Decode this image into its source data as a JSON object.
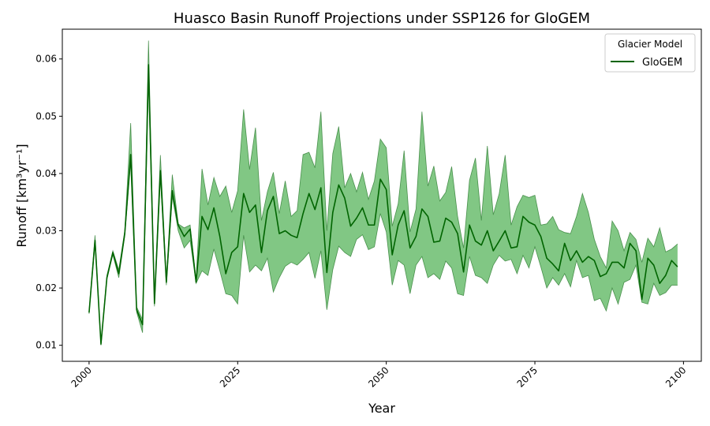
{
  "chart_data": {
    "type": "line",
    "title": "Huasco Basin Runoff Projections under SSP126 for GloGEM",
    "xlabel": "Year",
    "ylabel": "Runoff [km³yr⁻¹]",
    "xlim": [
      1995.5,
      2103
    ],
    "ylim": [
      0.0072,
      0.0652
    ],
    "x_ticks": [
      2000,
      2025,
      2050,
      2075,
      2100
    ],
    "y_ticks": [
      0.01,
      0.02,
      0.03,
      0.04,
      0.05,
      0.06
    ],
    "grid": false,
    "legend": {
      "title": "Glacier Model",
      "position": "top-right"
    },
    "colors": {
      "line": "#006400",
      "band": "#4caf50"
    },
    "series": [
      {
        "name": "GloGEM",
        "x": [
          2000,
          2001,
          2002,
          2003,
          2004,
          2005,
          2006,
          2007,
          2008,
          2009,
          2010,
          2011,
          2012,
          2013,
          2014,
          2015,
          2016,
          2017,
          2018,
          2019,
          2020,
          2021,
          2022,
          2023,
          2024,
          2025,
          2026,
          2027,
          2028,
          2029,
          2030,
          2031,
          2032,
          2033,
          2034,
          2035,
          2036,
          2037,
          2038,
          2039,
          2040,
          2041,
          2042,
          2043,
          2044,
          2045,
          2046,
          2047,
          2048,
          2049,
          2050,
          2051,
          2052,
          2053,
          2054,
          2055,
          2056,
          2057,
          2058,
          2059,
          2060,
          2061,
          2062,
          2063,
          2064,
          2065,
          2066,
          2067,
          2068,
          2069,
          2070,
          2071,
          2072,
          2073,
          2074,
          2075,
          2076,
          2077,
          2078,
          2079,
          2080,
          2081,
          2082,
          2083,
          2084,
          2085,
          2086,
          2087,
          2088,
          2089,
          2090,
          2091,
          2092,
          2093,
          2094,
          2095,
          2096,
          2097,
          2098,
          2099
        ],
        "values": [
          0.0157,
          0.0283,
          0.0102,
          0.0218,
          0.0262,
          0.0225,
          0.0295,
          0.0433,
          0.0162,
          0.0136,
          0.059,
          0.0173,
          0.0405,
          0.021,
          0.037,
          0.031,
          0.029,
          0.0303,
          0.021,
          0.0325,
          0.0302,
          0.034,
          0.029,
          0.0225,
          0.0262,
          0.0272,
          0.0365,
          0.0332,
          0.0345,
          0.0262,
          0.0335,
          0.036,
          0.0295,
          0.03,
          0.0292,
          0.0288,
          0.033,
          0.0365,
          0.0337,
          0.0375,
          0.0227,
          0.0332,
          0.038,
          0.0357,
          0.0308,
          0.0322,
          0.034,
          0.031,
          0.031,
          0.039,
          0.0372,
          0.0258,
          0.031,
          0.0335,
          0.027,
          0.029,
          0.0338,
          0.0325,
          0.028,
          0.0282,
          0.0322,
          0.0315,
          0.0295,
          0.0228,
          0.031,
          0.0282,
          0.0275,
          0.03,
          0.0265,
          0.0282,
          0.03,
          0.027,
          0.0272,
          0.0325,
          0.0315,
          0.031,
          0.029,
          0.0252,
          0.0242,
          0.023,
          0.0278,
          0.0248,
          0.0265,
          0.0245,
          0.0255,
          0.0248,
          0.022,
          0.0225,
          0.0245,
          0.0245,
          0.0235,
          0.0278,
          0.0265,
          0.018,
          0.0252,
          0.024,
          0.0208,
          0.0222,
          0.0248,
          0.0237
        ],
        "lower": [
          0.0155,
          0.0278,
          0.01,
          0.0215,
          0.0258,
          0.0218,
          0.029,
          0.042,
          0.0158,
          0.0122,
          0.056,
          0.0168,
          0.0395,
          0.0205,
          0.036,
          0.03,
          0.027,
          0.0283,
          0.0208,
          0.023,
          0.0222,
          0.0268,
          0.023,
          0.019,
          0.0187,
          0.0172,
          0.0292,
          0.0228,
          0.024,
          0.023,
          0.0252,
          0.0193,
          0.0218,
          0.0238,
          0.0245,
          0.024,
          0.025,
          0.0262,
          0.0217,
          0.0265,
          0.0162,
          0.0232,
          0.0273,
          0.0262,
          0.0255,
          0.0285,
          0.0293,
          0.0267,
          0.0272,
          0.033,
          0.0298,
          0.0205,
          0.0248,
          0.024,
          0.019,
          0.024,
          0.0255,
          0.0218,
          0.0225,
          0.0215,
          0.0247,
          0.0235,
          0.019,
          0.0187,
          0.0255,
          0.0222,
          0.0218,
          0.0208,
          0.024,
          0.0257,
          0.0247,
          0.025,
          0.0225,
          0.0257,
          0.0235,
          0.0272,
          0.0237,
          0.02,
          0.0218,
          0.0205,
          0.0225,
          0.0202,
          0.0248,
          0.0218,
          0.0222,
          0.0178,
          0.0182,
          0.016,
          0.02,
          0.0172,
          0.021,
          0.0215,
          0.024,
          0.0175,
          0.0172,
          0.0208,
          0.0187,
          0.0192,
          0.0205,
          0.0205
        ],
        "upper": [
          0.016,
          0.0292,
          0.0105,
          0.0222,
          0.0265,
          0.0232,
          0.03,
          0.0488,
          0.0167,
          0.0145,
          0.0632,
          0.018,
          0.0432,
          0.0215,
          0.0398,
          0.0312,
          0.0305,
          0.031,
          0.0215,
          0.0408,
          0.0345,
          0.0393,
          0.036,
          0.0378,
          0.0332,
          0.037,
          0.0512,
          0.0407,
          0.048,
          0.0318,
          0.0368,
          0.0402,
          0.033,
          0.0387,
          0.0325,
          0.0335,
          0.0433,
          0.0437,
          0.041,
          0.0508,
          0.03,
          0.0435,
          0.0482,
          0.0375,
          0.04,
          0.0368,
          0.0402,
          0.0355,
          0.0387,
          0.046,
          0.0445,
          0.0308,
          0.0347,
          0.044,
          0.0298,
          0.0338,
          0.0508,
          0.0378,
          0.0413,
          0.0352,
          0.0367,
          0.0412,
          0.0325,
          0.027,
          0.0388,
          0.0427,
          0.0318,
          0.0448,
          0.0328,
          0.0365,
          0.0432,
          0.031,
          0.0342,
          0.0362,
          0.0358,
          0.0362,
          0.031,
          0.0312,
          0.0325,
          0.0302,
          0.0297,
          0.0295,
          0.0325,
          0.0365,
          0.0332,
          0.0285,
          0.0255,
          0.0235,
          0.0317,
          0.03,
          0.0265,
          0.0297,
          0.0285,
          0.0245,
          0.0287,
          0.0272,
          0.0305,
          0.0263,
          0.0268,
          0.0277
        ]
      }
    ]
  }
}
